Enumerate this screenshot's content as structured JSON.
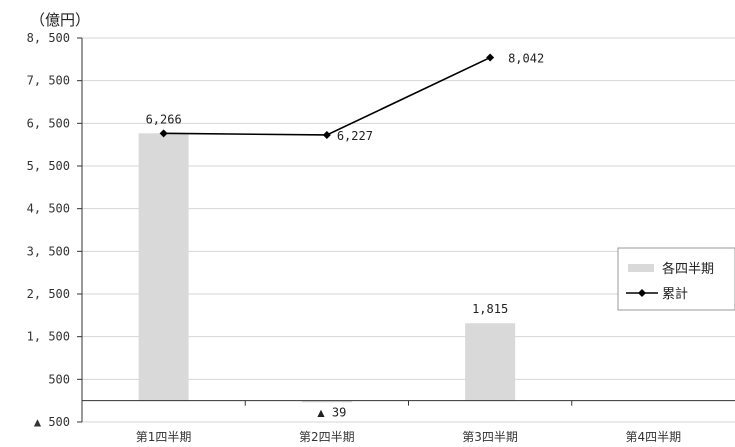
{
  "chart_data": {
    "type": "bar+line",
    "unit_label": "（億円）",
    "categories": [
      "第1四半期",
      "第2四半期",
      "第3四半期",
      "第4四半期"
    ],
    "series": [
      {
        "name": "各四半期",
        "type": "bar",
        "color": "#d9d9d9",
        "values": [
          6266,
          -39,
          1815,
          null
        ]
      },
      {
        "name": "累計",
        "type": "line",
        "color": "#000000",
        "marker": "diamond",
        "values": [
          6266,
          6227,
          8042,
          null
        ]
      }
    ],
    "data_labels": {
      "bar": [
        "",
        "▲ 39",
        "1,815",
        ""
      ],
      "line": [
        "6,266",
        "6,227",
        "8,042",
        ""
      ]
    },
    "ylim": [
      -500,
      8500
    ],
    "yticks": [
      -500,
      500,
      1500,
      2500,
      3500,
      4500,
      5500,
      6500,
      7500,
      8500
    ],
    "ytick_labels": [
      "▲ 500",
      "500",
      "1, 500",
      "2, 500",
      "3, 500",
      "4, 500",
      "5, 500",
      "6, 500",
      "7, 500",
      "8, 500"
    ],
    "grid": true,
    "legend": "right"
  }
}
